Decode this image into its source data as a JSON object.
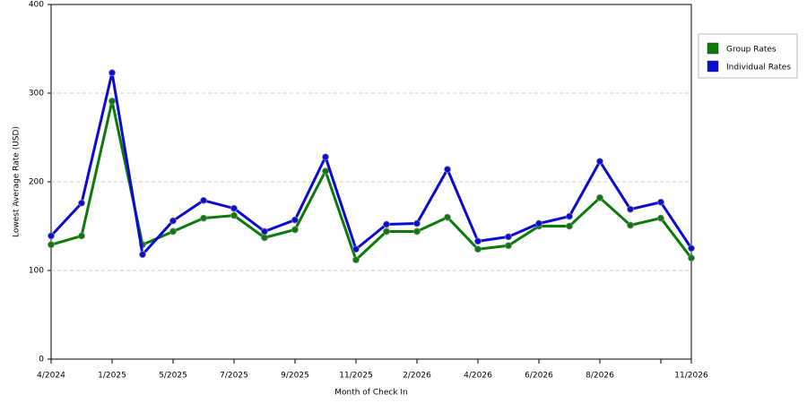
{
  "chart_data": {
    "type": "line",
    "x_label": "Month of Check In",
    "y_label": "Lowest Average Rate (USD)",
    "categories": [
      "4/2024",
      null,
      "1/2025",
      null,
      "5/2025",
      null,
      "7/2025",
      null,
      "9/2025",
      null,
      "11/2025",
      null,
      "2/2026",
      null,
      "4/2026",
      null,
      "6/2026",
      null,
      "8/2026",
      null,
      null,
      "11/2026"
    ],
    "series": [
      {
        "name": "Group Rates",
        "color": "#0a7a0a",
        "values": [
          129,
          139,
          291,
          129,
          144,
          159,
          162,
          137,
          146,
          212,
          112,
          144,
          144,
          160,
          124,
          128,
          150,
          150,
          182,
          151,
          159,
          114
        ]
      },
      {
        "name": "Individual Rates",
        "color": "#0a0ad2",
        "values": [
          139,
          176,
          323,
          118,
          156,
          179,
          170,
          144,
          157,
          228,
          124,
          152,
          153,
          214,
          133,
          138,
          153,
          161,
          223,
          169,
          177,
          125
        ]
      }
    ],
    "ylim": [
      0,
      400
    ],
    "yticks": [
      0,
      100,
      200,
      300,
      400
    ],
    "grid": true,
    "legend": "upper right"
  }
}
